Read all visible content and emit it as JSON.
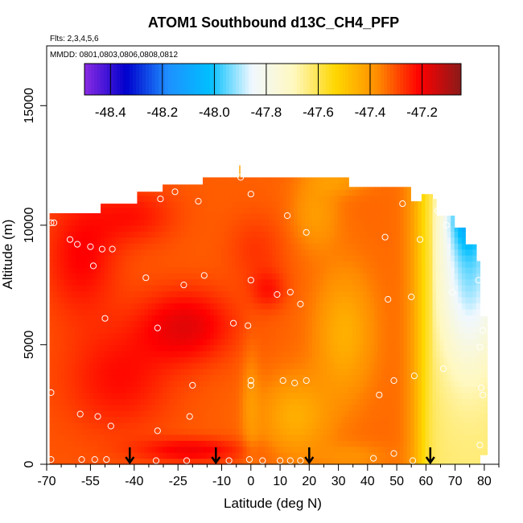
{
  "chart_data": {
    "type": "heatmap",
    "title": "ATOM1 Southbound d13C_CH4_PFP",
    "flights_label": "Flts: 2,3,4,5,6",
    "dates_label": "MMDD: 0801,0803,0806,0808,0812",
    "xlabel": "Latitude (deg N)",
    "ylabel": "Altitude (m)",
    "xlim": [
      -70,
      85
    ],
    "ylim": [
      0,
      17500
    ],
    "x_ticks": [
      -70,
      -55,
      -40,
      -25,
      -10,
      0,
      10,
      20,
      30,
      40,
      50,
      60,
      70,
      80
    ],
    "x_minor_ticks": [
      -65,
      -60,
      -50,
      -45,
      -35,
      -30,
      -20,
      -15,
      -5,
      5,
      15,
      25,
      35,
      45,
      55,
      65,
      75,
      85
    ],
    "y_ticks": [
      0,
      5000,
      10000,
      15000
    ],
    "colorbar": {
      "range": [
        -48.5,
        -47.05
      ],
      "ticks": [
        -48.4,
        -48.2,
        -48.0,
        -47.8,
        -47.6,
        -47.4,
        -47.2
      ],
      "colors": [
        "#8a2be2",
        "#0000cd",
        "#1e90ff",
        "#00bfff",
        "#f0f8ff",
        "#fff8c0",
        "#ffd700",
        "#ff8c00",
        "#ff0000",
        "#8b1a1a"
      ]
    },
    "arrows_lat": [
      -41.5,
      -12,
      20,
      61.5
    ],
    "samples": [
      {
        "lat": -68.5,
        "alt": 10100
      },
      {
        "lat": -67.5,
        "alt": 10100
      },
      {
        "lat": -62,
        "alt": 9400
      },
      {
        "lat": -59.5,
        "alt": 9200
      },
      {
        "lat": -55,
        "alt": 9100
      },
      {
        "lat": -51,
        "alt": 9000
      },
      {
        "lat": -47.5,
        "alt": 9000
      },
      {
        "lat": -54,
        "alt": 8300
      },
      {
        "lat": -36,
        "alt": 7800
      },
      {
        "lat": -23,
        "alt": 7500
      },
      {
        "lat": -16,
        "alt": 7900
      },
      {
        "lat": -50,
        "alt": 6100
      },
      {
        "lat": -32,
        "alt": 5700
      },
      {
        "lat": -6,
        "alt": 5900
      },
      {
        "lat": -1,
        "alt": 5800
      },
      {
        "lat": 0,
        "alt": 7700
      },
      {
        "lat": 9,
        "alt": 7100
      },
      {
        "lat": 13.5,
        "alt": 7200
      },
      {
        "lat": 17,
        "alt": 6700
      },
      {
        "lat": 0,
        "alt": 11300
      },
      {
        "lat": -3.5,
        "alt": 12000
      },
      {
        "lat": -31,
        "alt": 11100
      },
      {
        "lat": -26,
        "alt": 11400
      },
      {
        "lat": -18,
        "alt": 11000
      },
      {
        "lat": 12.5,
        "alt": 10400
      },
      {
        "lat": 19,
        "alt": 9700
      },
      {
        "lat": 46,
        "alt": 9500
      },
      {
        "lat": 52,
        "alt": 10900
      },
      {
        "lat": 58,
        "alt": 9400
      },
      {
        "lat": 64,
        "alt": 10600
      },
      {
        "lat": 67,
        "alt": 10000
      },
      {
        "lat": 74,
        "alt": 10100
      },
      {
        "lat": 77.5,
        "alt": 9900
      },
      {
        "lat": 55,
        "alt": 7000
      },
      {
        "lat": 47,
        "alt": 6900
      },
      {
        "lat": 69,
        "alt": 7200
      },
      {
        "lat": 78,
        "alt": 7700
      },
      {
        "lat": 79.5,
        "alt": 5600
      },
      {
        "lat": 78.5,
        "alt": 4900
      },
      {
        "lat": 66,
        "alt": 4000
      },
      {
        "lat": 56,
        "alt": 3700
      },
      {
        "lat": 49,
        "alt": 3500
      },
      {
        "lat": 44,
        "alt": 2900
      },
      {
        "lat": 11,
        "alt": 3500
      },
      {
        "lat": 15,
        "alt": 3400
      },
      {
        "lat": 19,
        "alt": 3500
      },
      {
        "lat": 0,
        "alt": 3500
      },
      {
        "lat": 0,
        "alt": 3300
      },
      {
        "lat": -20,
        "alt": 3300
      },
      {
        "lat": -68.5,
        "alt": 3000
      },
      {
        "lat": -58.5,
        "alt": 2100
      },
      {
        "lat": -52.5,
        "alt": 2000
      },
      {
        "lat": -48,
        "alt": 1600
      },
      {
        "lat": -32,
        "alt": 1400
      },
      {
        "lat": -21,
        "alt": 2000
      },
      {
        "lat": 79,
        "alt": 3200
      },
      {
        "lat": 79.5,
        "alt": 2900
      },
      {
        "lat": 78.5,
        "alt": 800
      },
      {
        "lat": -68.5,
        "alt": 200
      },
      {
        "lat": -58,
        "alt": 200
      },
      {
        "lat": -53.5,
        "alt": 200
      },
      {
        "lat": -49.5,
        "alt": 200
      },
      {
        "lat": -32.5,
        "alt": 150
      },
      {
        "lat": -22,
        "alt": 150
      },
      {
        "lat": -7.5,
        "alt": 150
      },
      {
        "lat": -0.5,
        "alt": 200
      },
      {
        "lat": 4,
        "alt": 150
      },
      {
        "lat": 10,
        "alt": 150
      },
      {
        "lat": 13.5,
        "alt": 150
      },
      {
        "lat": 17,
        "alt": 150
      },
      {
        "lat": 42,
        "alt": 250
      },
      {
        "lat": 49,
        "alt": 450
      },
      {
        "lat": 55.5,
        "alt": 150
      }
    ]
  }
}
